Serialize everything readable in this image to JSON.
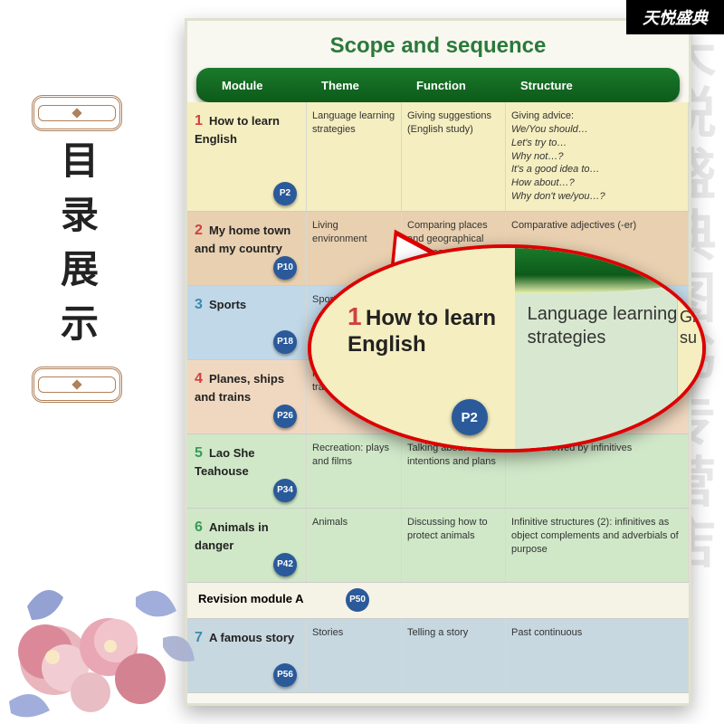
{
  "banner": "天悦盛典",
  "watermark": "天悦盛典图书专营店",
  "sidelabel": "目录展示",
  "title": "Scope and sequence",
  "headers": {
    "module": "Module",
    "theme": "Theme",
    "function": "Function",
    "structure": "Structure"
  },
  "rows": [
    {
      "num": "1",
      "numColor": "#d04040",
      "title": "How to learn English",
      "page": "P2",
      "bg": "#f5eec0",
      "theme": "Language learning strategies",
      "function": "Giving suggestions (English study)",
      "structure": "Giving advice:\nWe/You should…\nLet's try to…\nWhy not…?\nIt's a good idea to…\nHow about…?\nWhy don't we/you…?",
      "structItalic": true
    },
    {
      "num": "2",
      "numColor": "#d04040",
      "title": "My home town and my country",
      "page": "P10",
      "bg": "#e8d0b0",
      "theme": "Living environment",
      "function": "Comparing places and geographical features",
      "structure": "Comparative adjectives (-er)"
    },
    {
      "num": "3",
      "numColor": "#3a8ab0",
      "title": "Sports",
      "page": "P18",
      "bg": "#c0d8e8",
      "theme": "Sports",
      "function": "",
      "structure": ""
    },
    {
      "num": "4",
      "numColor": "#d04040",
      "title": "Planes, ships and trains",
      "page": "P26",
      "bg": "#f0d8c0",
      "theme": "Modes of transportation",
      "function": "",
      "structure": ""
    },
    {
      "num": "5",
      "numColor": "#3a9a5a",
      "title": "Lao She Teahouse",
      "page": "P34",
      "bg": "#d0e8c8",
      "theme": "Recreation: plays and films",
      "function": "Talking about intentions and plans",
      "structure": "verbs followed by infinitives"
    },
    {
      "num": "6",
      "numColor": "#3a9a5a",
      "title": "Animals in danger",
      "page": "P42",
      "bg": "#d0e8c8",
      "theme": "Animals",
      "function": "Discussing how to protect animals",
      "structure": "Infinitive structures (2): infinitives as object complements and adverbials of purpose"
    }
  ],
  "revision": {
    "label": "Revision module A",
    "page": "P50"
  },
  "row7": {
    "num": "7",
    "numColor": "#3a8ab0",
    "title": "A famous story",
    "page": "P56",
    "bg": "#c8d8e0",
    "theme": "Stories",
    "function": "Telling a story",
    "structure": "Past continuous"
  },
  "zoom": {
    "num": "1",
    "title": "How to learn English",
    "page": "P2",
    "theme": "Language learning strategies",
    "cut": "Gi\nsu"
  }
}
